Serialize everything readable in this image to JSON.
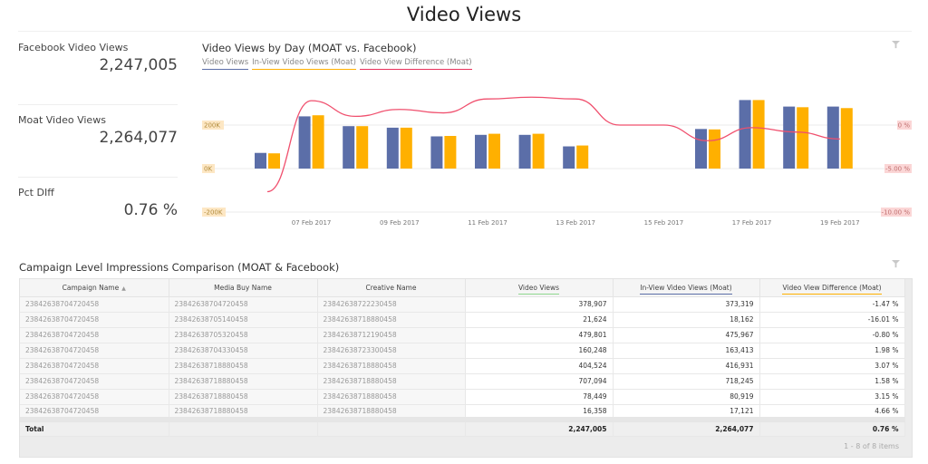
{
  "page": {
    "title": "Video Views"
  },
  "kpis": [
    {
      "label": "Facebook Video Views",
      "value": "2,247,005"
    },
    {
      "label": "Moat Video Views",
      "value": "2,264,077"
    },
    {
      "label": "Pct DIff",
      "value": "0.76 %"
    }
  ],
  "chart": {
    "title": "Video Views by Day (MOAT vs. Facebook)",
    "legend": [
      {
        "label": "Video Views",
        "color": "#5b6ea8"
      },
      {
        "label": "In-View Video Views (Moat)",
        "color": "#ffb000"
      },
      {
        "label": "Video View Difference (Moat)",
        "color": "#f0506e"
      }
    ]
  },
  "chart_data": {
    "type": "bar",
    "title": "Video Views by Day (MOAT vs. Facebook)",
    "categories": [
      "06 Feb 2017",
      "07 Feb 2017",
      "08 Feb 2017",
      "09 Feb 2017",
      "10 Feb 2017",
      "11 Feb 2017",
      "12 Feb 2017",
      "13 Feb 2017",
      "14 Feb 2017",
      "15 Feb 2017",
      "16 Feb 2017",
      "17 Feb 2017",
      "18 Feb 2017",
      "19 Feb 2017"
    ],
    "x_tick_labels": [
      "07 Feb 2017",
      "09 Feb 2017",
      "11 Feb 2017",
      "13 Feb 2017",
      "15 Feb 2017",
      "17 Feb 2017",
      "19 Feb 2017"
    ],
    "series": [
      {
        "name": "Video Views",
        "type": "bar",
        "axis": "left",
        "color": "#5b6ea8",
        "values": [
          72000,
          240000,
          195000,
          188000,
          148000,
          155000,
          155000,
          102000,
          null,
          null,
          182000,
          315000,
          285000,
          285000
        ]
      },
      {
        "name": "In-View Video Views (Moat)",
        "type": "bar",
        "axis": "left",
        "color": "#ffb000",
        "values": [
          70000,
          245000,
          195000,
          188000,
          150000,
          160000,
          160000,
          106000,
          null,
          null,
          180000,
          315000,
          282000,
          278000
        ]
      },
      {
        "name": "Video View Difference (Moat)",
        "type": "line",
        "axis": "right",
        "color": "#f0506e",
        "values": [
          -6.2,
          2.8,
          1.0,
          1.8,
          1.4,
          3.0,
          3.2,
          3.0,
          0.0,
          0.0,
          -1.8,
          -0.3,
          -0.8,
          -1.6
        ]
      }
    ],
    "left_axis": {
      "ticks": [
        "200K",
        "0K",
        "-200K"
      ],
      "ylim": [
        -200000,
        400000
      ]
    },
    "right_axis": {
      "ticks": [
        "0 %",
        "-5.00 %",
        "-10.00 %"
      ],
      "ylim": [
        -10,
        5
      ]
    },
    "xlabel": "",
    "ylabel": "",
    "grid": true,
    "legend_position": "top-left"
  },
  "table": {
    "title": "Campaign Level Impressions Comparison (MOAT & Facebook)",
    "columns": [
      "Campaign Name",
      "Media Buy Name",
      "Creative Name",
      "Video Views",
      "In-View Video Views (Moat)",
      "Video View Difference (Moat)"
    ],
    "column_underlines": [
      "",
      "",
      "",
      "#8ed88e",
      "#5b6ea8",
      "#ffb000"
    ],
    "sort_indicator": "▲",
    "rows": [
      [
        "23842638704720458",
        "23842638704720458",
        "23842638722230458",
        "378,907",
        "373,319",
        "-1.47 %"
      ],
      [
        "23842638704720458",
        "23842638705140458",
        "23842638718880458",
        "21,624",
        "18,162",
        "-16.01 %"
      ],
      [
        "23842638704720458",
        "23842638705320458",
        "23842638712190458",
        "479,801",
        "475,967",
        "-0.80 %"
      ],
      [
        "23842638704720458",
        "23842638704330458",
        "23842638723300458",
        "160,248",
        "163,413",
        "1.98 %"
      ],
      [
        "23842638704720458",
        "23842638718880458",
        "23842638718880458",
        "404,524",
        "416,931",
        "3.07 %"
      ],
      [
        "23842638704720458",
        "23842638718880458",
        "23842638718880458",
        "707,094",
        "718,245",
        "1.58 %"
      ],
      [
        "23842638704720458",
        "23842638718880458",
        "23842638718880458",
        "78,449",
        "80,919",
        "3.15 %"
      ],
      [
        "23842638704720458",
        "23842638718880458",
        "23842638718880458",
        "16,358",
        "17,121",
        "4.66 %"
      ]
    ],
    "total": [
      "Total",
      "",
      "",
      "2,247,005",
      "2,264,077",
      "0.76 %"
    ],
    "pager": "1 - 8 of 8 items"
  }
}
